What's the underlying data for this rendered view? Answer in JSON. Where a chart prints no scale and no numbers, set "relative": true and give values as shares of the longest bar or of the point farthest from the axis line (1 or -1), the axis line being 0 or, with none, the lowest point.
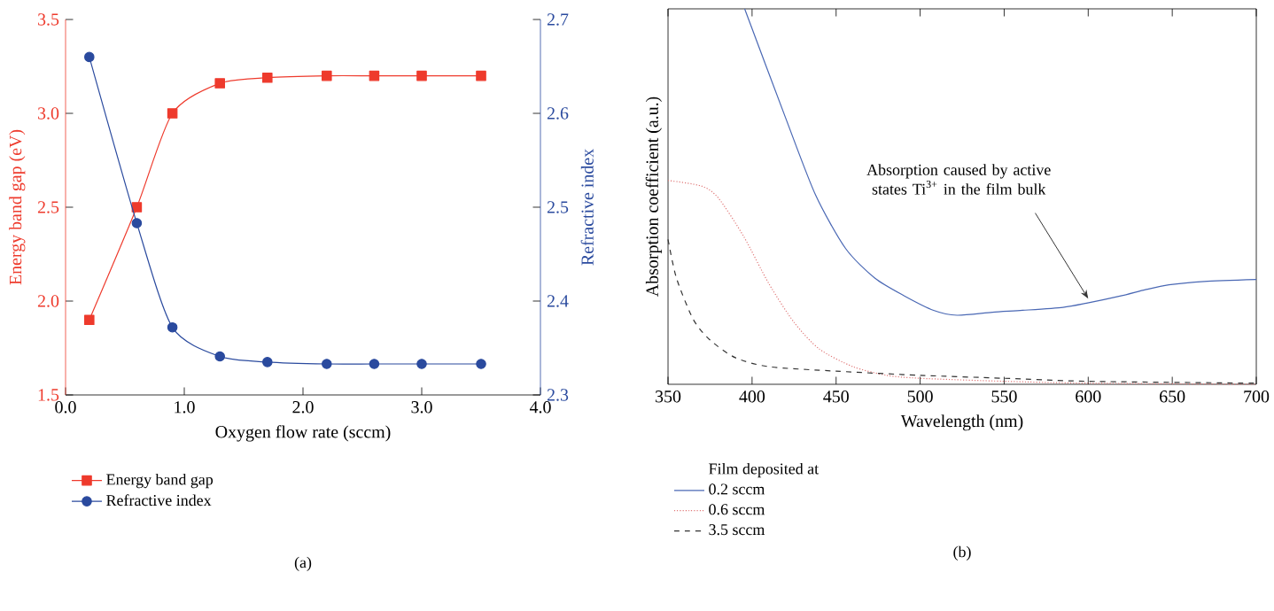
{
  "chart_data": [
    {
      "type": "line",
      "xlabel": "Oxygen flow rate (sccm)",
      "ylabel": "Energy band gap (eV)",
      "y2label": "Refractive index",
      "x": [
        0.2,
        0.6,
        0.9,
        1.3,
        1.7,
        2.2,
        2.6,
        3.0,
        3.5
      ],
      "series": [
        {
          "name": "Energy band gap",
          "color": "#ee3a2c",
          "marker": "square",
          "values": [
            1.9,
            2.5,
            3.0,
            3.16,
            3.19,
            3.2,
            3.2,
            3.2,
            3.2
          ]
        },
        {
          "name": "Refractive index",
          "color": "#2a4a9e",
          "marker": "circle",
          "axis": "y2",
          "values": [
            2.66,
            2.483,
            2.372,
            2.341,
            2.335,
            2.333,
            2.333,
            2.333,
            2.333
          ]
        }
      ],
      "xlim": [
        0,
        4
      ],
      "xticks": [
        {
          "value": 0,
          "label": "0.0"
        },
        {
          "value": 1,
          "label": "1.0"
        },
        {
          "value": 2,
          "label": "2.0"
        },
        {
          "value": 3,
          "label": "3.0"
        },
        {
          "value": 4,
          "label": "4.0"
        }
      ],
      "ylim": [
        1.5,
        3.5
      ],
      "yticks": [
        1.5,
        {
          "value": 2,
          "label": "2.0"
        },
        2.5,
        {
          "value": 3,
          "label": "3.0"
        },
        3.5
      ],
      "y2lim": [
        2.3,
        2.7
      ],
      "y2ticks": [
        2.3,
        2.4,
        2.5,
        2.6,
        2.7
      ],
      "legend": "bottom",
      "annotations": [
        "(a)"
      ]
    },
    {
      "type": "line",
      "xlabel": "Wavelength (nm)",
      "ylabel": "Absorption coefficient (a.u.)",
      "relative": true,
      "legend_title": "Film deposited at",
      "series": [
        {
          "name": "0.2 sccm",
          "color": "#4a68b4",
          "line_style": "solid",
          "x": [
            395.6,
            420,
            437.8,
            455.6,
            473,
            490.4,
            508,
            522,
            543,
            561,
            585,
            599,
            620,
            634,
            648,
            669,
            700
          ],
          "values": [
            1.0,
            0.709,
            0.504,
            0.362,
            0.283,
            0.236,
            0.197,
            0.184,
            0.192,
            0.197,
            0.205,
            0.216,
            0.236,
            0.252,
            0.265,
            0.274,
            0.279
          ]
        },
        {
          "name": "0.6 sccm",
          "color": "#e07878",
          "line_style": "dotted",
          "x": [
            350,
            370,
            380,
            395,
            410,
            425,
            440,
            460,
            480,
            500,
            550,
            600,
            700
          ],
          "values": [
            0.543,
            0.528,
            0.496,
            0.394,
            0.268,
            0.165,
            0.094,
            0.047,
            0.024,
            0.016,
            0.008,
            0.003,
            0.0
          ]
        },
        {
          "name": "3.5 sccm",
          "color": "#333333",
          "line_style": "dashed",
          "x": [
            350,
            355,
            365,
            375,
            390,
            410,
            450,
            500,
            550,
            600,
            700
          ],
          "values": [
            0.386,
            0.283,
            0.173,
            0.118,
            0.071,
            0.047,
            0.035,
            0.024,
            0.016,
            0.008,
            0.003
          ]
        }
      ],
      "xlim": [
        350,
        700
      ],
      "xticks": [
        350,
        400,
        450,
        500,
        550,
        600,
        650,
        700
      ],
      "legend": "bottom",
      "annotations": [
        {
          "text": "Absorption caused by active states Ti$^{3+}$ in the film bulk",
          "x": 600,
          "y": 0.216
        },
        "(b)"
      ]
    }
  ]
}
